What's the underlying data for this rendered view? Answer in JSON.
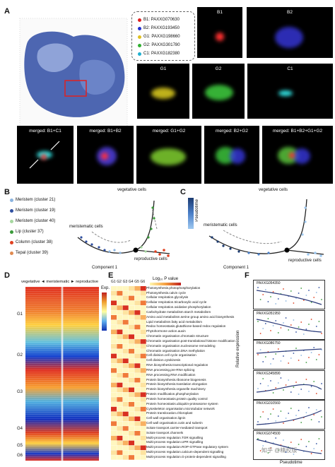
{
  "panel_labels": {
    "a": "A",
    "b": "B",
    "c": "C",
    "d": "D",
    "e": "E",
    "f": "F"
  },
  "legendA": [
    {
      "label": "B1: PAXXG070630",
      "color": "#e02020"
    },
    {
      "label": "B2: PAXXG193450",
      "color": "#2030d0"
    },
    {
      "label": "G1: PAXXG198660",
      "color": "#e0c020"
    },
    {
      "label": "G2: PAXXG301780",
      "color": "#30b030"
    },
    {
      "label": "C1: PAXXG182380",
      "color": "#20b0d0"
    }
  ],
  "tiles_top": [
    "B1",
    "B2",
    "G1",
    "G2",
    "C1"
  ],
  "tiles_merged": [
    "merged: B1+C1",
    "merged: B1+B2",
    "merged: G1+G2",
    "merged: B2+G2",
    "merged: B1+B2+G1+G2"
  ],
  "legendB": [
    {
      "label": "Meristem (cluster 21)",
      "color": "#8ab4e0"
    },
    {
      "label": "Meristem (cluster 19)",
      "color": "#2f4fa0"
    },
    {
      "label": "Meristem (cluster 40)",
      "color": "#a6d8a0"
    },
    {
      "label": "Lip (cluster 37)",
      "color": "#3a9a3a"
    },
    {
      "label": "Column (cluster 38)",
      "color": "#e04020"
    },
    {
      "label": "Tepal (cluster 39)",
      "color": "#e08a50"
    }
  ],
  "traj": {
    "vegetative": "vegetative cells",
    "meristematic": "meristematic cells",
    "reproductive": "reproductive cells",
    "xlabel": "Component 1",
    "ylabel": "Component 2",
    "node": "1"
  },
  "pseudotime": {
    "label": "Pseudotime",
    "ticks": [
      "60",
      "40",
      "20",
      "0"
    ]
  },
  "heatmap": {
    "header": "vegetative ◄ meristematic ► reproductive",
    "exp_label": "Exp.",
    "exp_ticks": [
      "3",
      "2",
      "1",
      "0",
      "-1",
      "-2",
      "-3"
    ],
    "groups": [
      "G1",
      "G2",
      "G3",
      "G4",
      "G5",
      "G6"
    ]
  },
  "go": {
    "columns": [
      "G1",
      "G2",
      "G3",
      "G4",
      "G5",
      "G6"
    ],
    "scale_label": "Log₁₀ P value",
    "scale_ticks": [
      "0",
      "5"
    ],
    "terms": [
      "Photosynthesis.photophosphorylation",
      "Photosynthesis.calvin cycle",
      "Cellular respiration.glycolysis",
      "Cellular respiration.tricarboxylic acid cycle",
      "Cellular respiration.oxidative phosphorylation",
      "Carbohydrate metabolism.starch metabolism",
      "Amino acid metabolism.serine group amino acid biosynthesis",
      "Lipid metabolism.fatty acid metabolism",
      "Redox homeostasis.glutathione-based redox regulation",
      "Phytohormone action.auxin",
      "Chromatin organisation.chromatin structure",
      "Chromatin organisation.post-translational histone modification",
      "Chromatin organisation.nucleosome remodeling",
      "Chromatin organisation.DNA methylation",
      "Cell division.cell cycle organisation",
      "Cell division.cytokinesis",
      "RNA biosynthesis.transcriptional regulation",
      "RNA processing.pre-RNA splicing",
      "RNA processing.RNA modification",
      "Protein biosynthesis.ribosome biogenesis",
      "Protein biosynthesis.translation elongation",
      "Protein biosynthesis.organelle machinery",
      "Protein modification.phosphorylation",
      "Protein homeostasis.protein quality control",
      "Protein homeostasis.ubiquitin-proteasome system",
      "Cytoskeleton organisation.microtubular network",
      "Protein translocation.chloroplast",
      "Cell wall organisation.lignin",
      "Cell wall organisation.cutin and suberin",
      "Solute transport.carrier-mediated transport",
      "Solute transport.channels",
      "Multi-process regulation.TOR signalling",
      "Multi-process regulation.UPR signalling",
      "Multi-process regulation.ROP-GTPase regulatory system",
      "Multi-process regulation.calcium-dependent signalling",
      "Multi-process regulation.G-protein-dependent signalling"
    ]
  },
  "expr": {
    "ylabel": "Relative expression",
    "xlabel": "Pseudotime",
    "genes": [
      "PAXXG054350",
      "PAXXG051950",
      "PAXXG086750",
      "PAXXG345890",
      "PAXXG010560",
      "PAXXG074500"
    ],
    "yticks": [
      "10.0",
      "1.0",
      "0.1"
    ]
  },
  "watermark": "知乎 @精校版"
}
